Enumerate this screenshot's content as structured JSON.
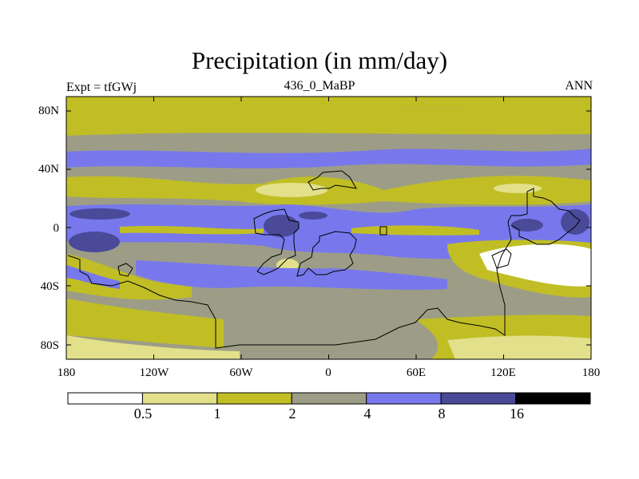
{
  "chart_data": {
    "type": "heatmap",
    "title": "Precipitation (in mm/day)",
    "left_string": "Expt = tfGWj",
    "center_string": "436_0_MaBP",
    "right_string": "ANN",
    "x_ticks": [
      "180",
      "120W",
      "60W",
      "0",
      "60E",
      "120E",
      "180"
    ],
    "x_tick_values": [
      -180,
      -120,
      -60,
      0,
      60,
      120,
      180
    ],
    "y_ticks": [
      "80N",
      "40N",
      "0",
      "40S",
      "80S"
    ],
    "y_tick_values": [
      80,
      40,
      0,
      -40,
      -80
    ],
    "xlim": [
      -180,
      180
    ],
    "ylim": [
      -90,
      90
    ],
    "xlabel": "",
    "ylabel": "",
    "colorbar": {
      "levels": [
        0.5,
        1,
        2,
        4,
        8,
        16
      ],
      "labels": [
        "0.5",
        "1",
        "2",
        "4",
        "8",
        "16"
      ],
      "colors": [
        "#ffffff",
        "#e2e08a",
        "#c0be24",
        "#9d9d87",
        "#7878ec",
        "#4a4a99",
        "#000000"
      ]
    },
    "contour_fill_colors": {
      "very_dry": "#ffffff",
      "dry": "#e2e08a",
      "moderate": "#c0be24",
      "medium": "#9d9d87",
      "wet": "#7878ec",
      "very_wet": "#4a4a99"
    }
  }
}
